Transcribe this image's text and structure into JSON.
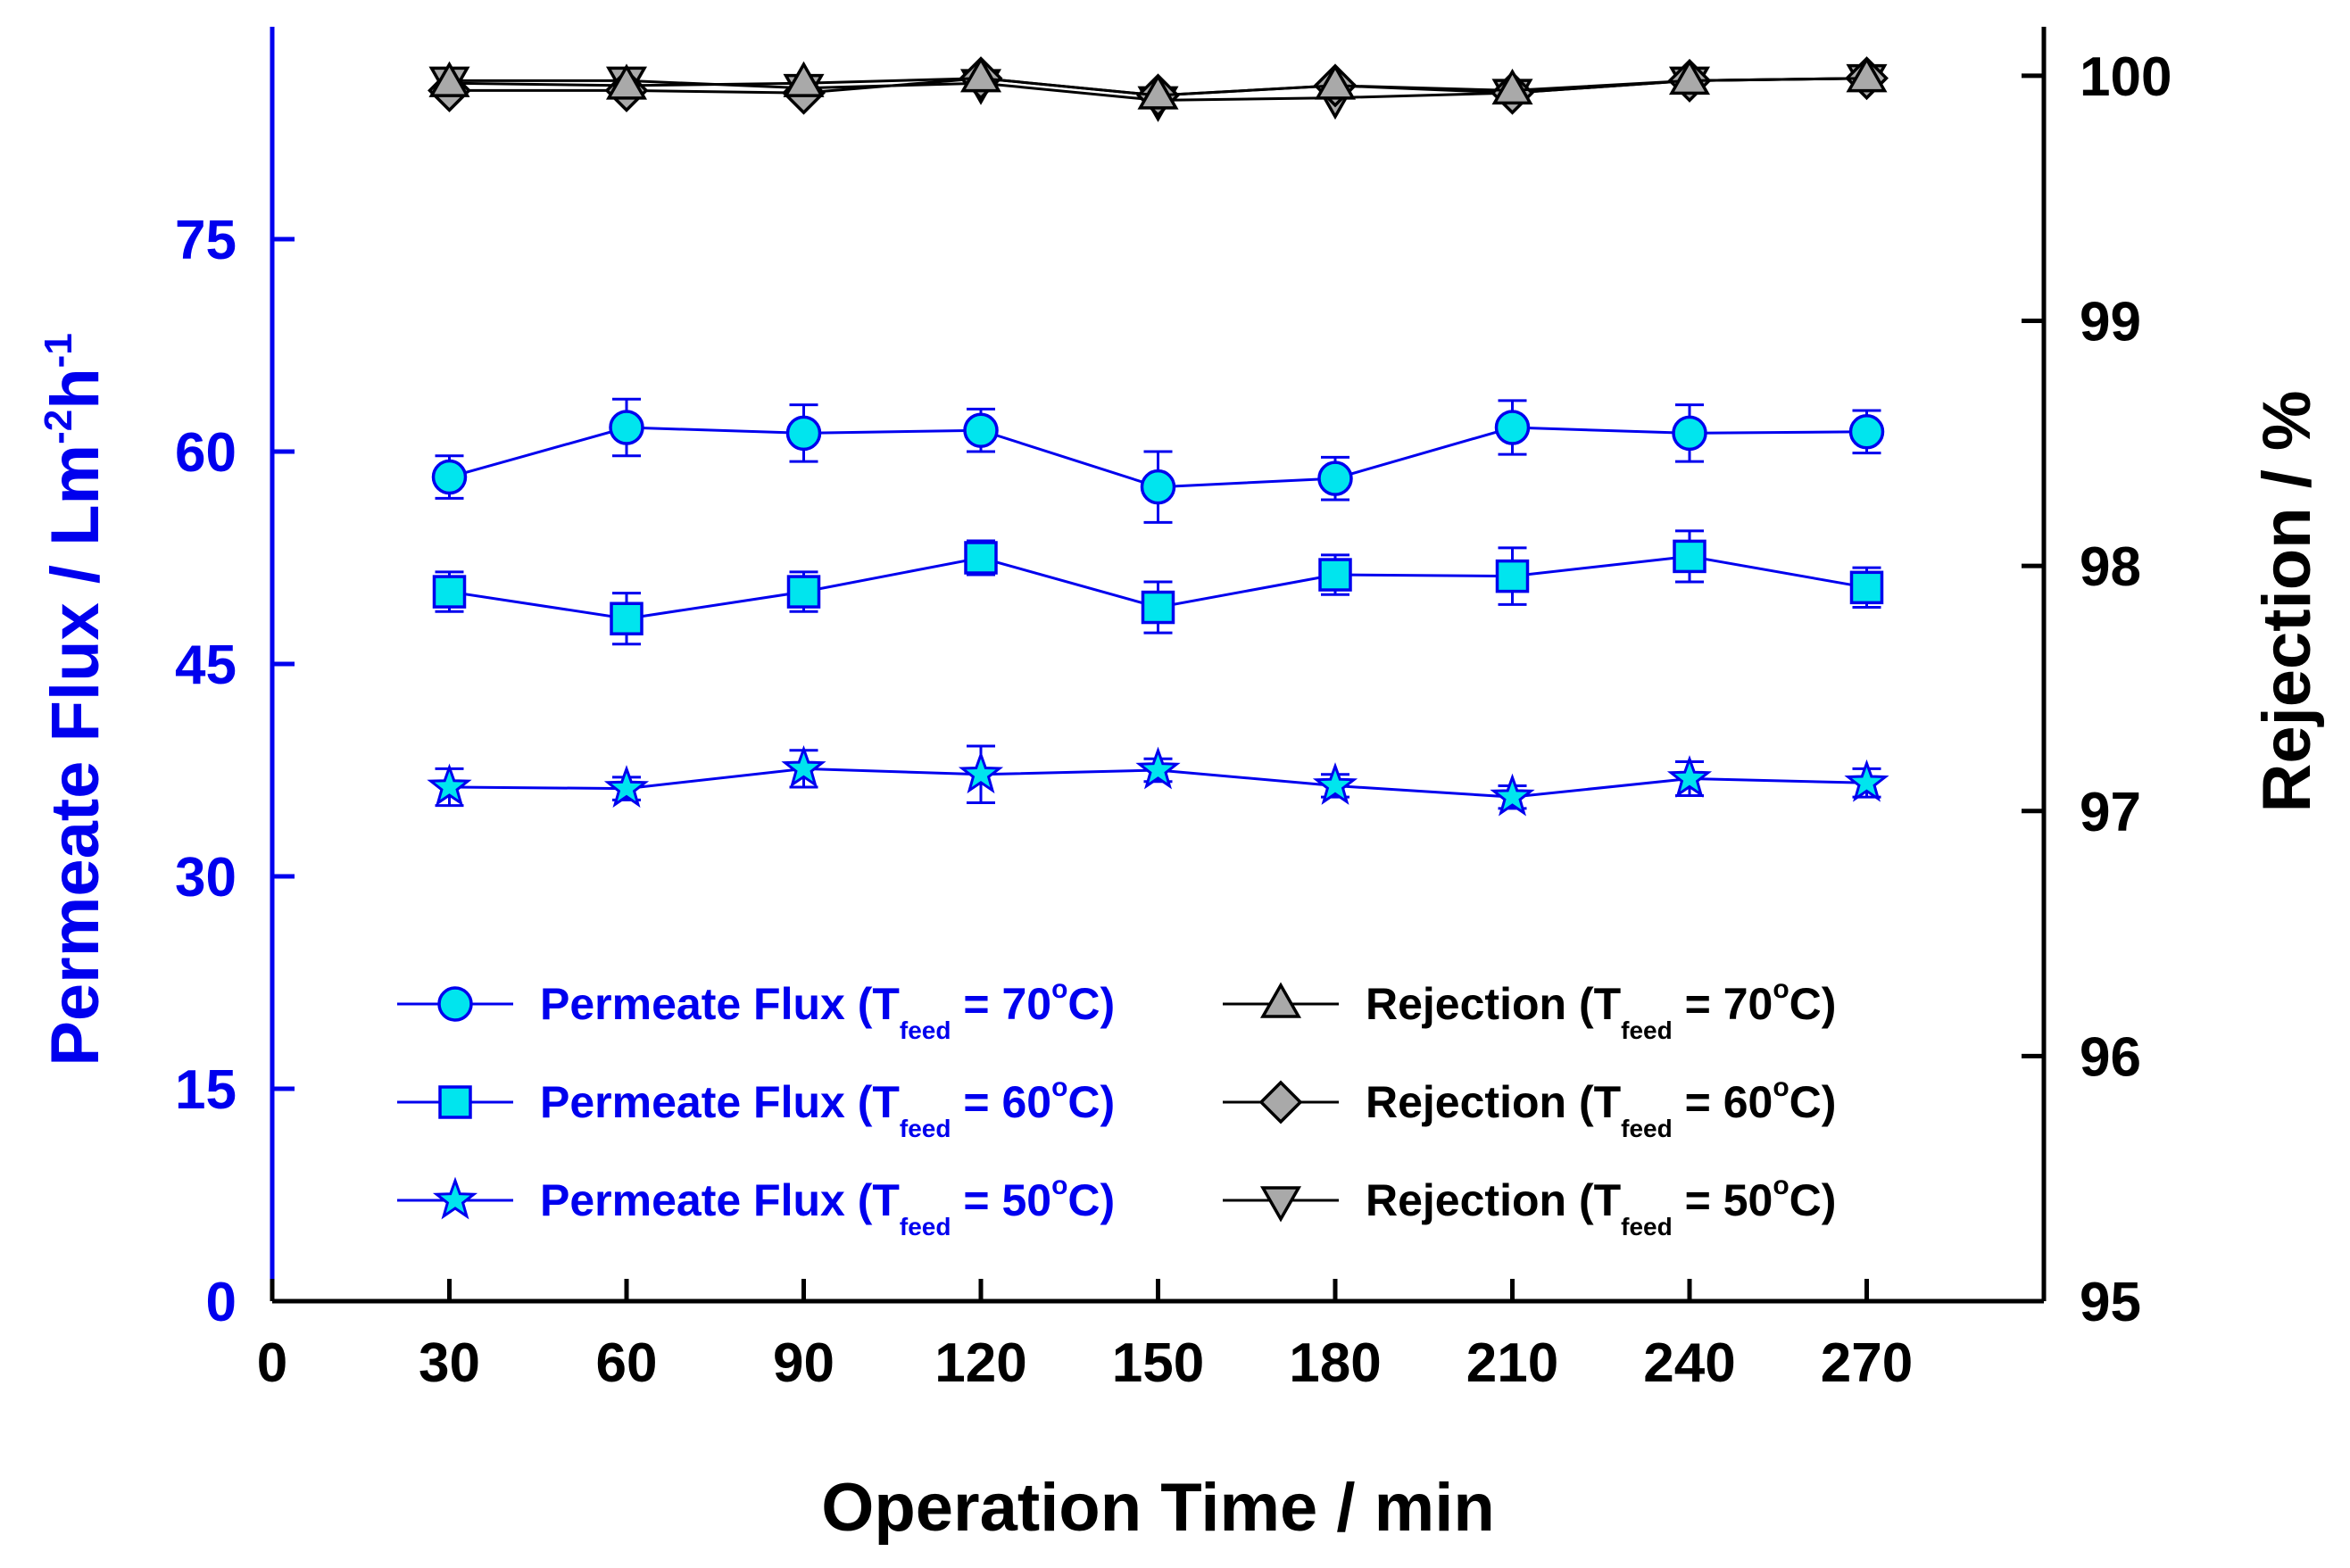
{
  "chart_data": {
    "type": "line",
    "title": "",
    "x": [
      30,
      60,
      90,
      120,
      150,
      180,
      210,
      240,
      270
    ],
    "xlabel": "Operation Time / min",
    "xlim": [
      0,
      300
    ],
    "xticks": [
      0,
      30,
      60,
      90,
      120,
      150,
      180,
      210,
      240,
      270
    ],
    "ylabel_left": {
      "text": "Permeate Flux / Lm",
      "sup1": "-2",
      "h": "h",
      "sup2": "-1"
    },
    "ylim_left": [
      0,
      90
    ],
    "yticks_left": [
      0,
      15,
      30,
      45,
      60,
      75
    ],
    "ylabel_right": "Rejection / %",
    "ylim_right": [
      95,
      100.2
    ],
    "yticks_right": [
      95,
      96,
      97,
      98,
      99,
      100
    ],
    "axis_colors": {
      "left": "#0000ee",
      "right": "#000000",
      "bottom": "#000000"
    },
    "series": [
      {
        "name": "Permeate Flux (T feed = 70°C)",
        "axis": "left",
        "marker": "circle",
        "line_color": "#0000ee",
        "fill": "#00e5ee",
        "values": [
          58.2,
          61.7,
          61.3,
          61.5,
          57.5,
          58.1,
          61.7,
          61.3,
          61.4
        ],
        "errors": [
          1.5,
          2.0,
          2.0,
          1.5,
          2.5,
          1.5,
          1.9,
          2.0,
          1.5
        ]
      },
      {
        "name": "Permeate Flux (T feed = 60°C)",
        "axis": "left",
        "marker": "square",
        "line_color": "#0000ee",
        "fill": "#00e5ee",
        "values": [
          50.1,
          48.2,
          50.1,
          52.5,
          49.0,
          51.3,
          51.2,
          52.6,
          50.4
        ],
        "errors": [
          1.4,
          1.8,
          1.4,
          1.2,
          1.8,
          1.4,
          2.0,
          1.8,
          1.4
        ]
      },
      {
        "name": "Permeate Flux (T feed = 50°C)",
        "axis": "left",
        "marker": "star",
        "line_color": "#0000ee",
        "fill": "#00e5ee",
        "values": [
          36.3,
          36.2,
          37.6,
          37.2,
          37.5,
          36.4,
          35.6,
          36.9,
          36.6
        ],
        "errors": [
          1.3,
          0.8,
          1.3,
          2.0,
          0.8,
          0.8,
          0.8,
          1.2,
          1.0
        ]
      },
      {
        "name": "Rejection (T feed = 70°C)",
        "axis": "right",
        "marker": "triangle-up",
        "line_color": "#000000",
        "fill": "#a9a9a9",
        "values": [
          99.97,
          99.96,
          99.97,
          99.99,
          99.92,
          99.96,
          99.94,
          99.98,
          99.99
        ]
      },
      {
        "name": "Rejection (T feed = 60°C)",
        "axis": "right",
        "marker": "diamond",
        "line_color": "#000000",
        "fill": "#a9a9a9",
        "values": [
          99.94,
          99.94,
          99.93,
          99.99,
          99.92,
          99.96,
          99.93,
          99.98,
          99.99
        ]
      },
      {
        "name": "Rejection (T feed = 50°C)",
        "axis": "right",
        "marker": "triangle-down",
        "line_color": "#000000",
        "fill": "#a9a9a9",
        "values": [
          99.98,
          99.98,
          99.95,
          99.97,
          99.9,
          99.91,
          99.93,
          99.98,
          99.99
        ]
      }
    ],
    "legend": {
      "placement": "lower-center",
      "items": [
        {
          "series": 0,
          "prefix": "Permeate Flux (T",
          "sub": "feed",
          "suffix": " = 70",
          "deg": "o",
          "end": "C)",
          "color": "#0000ee"
        },
        {
          "series": 1,
          "prefix": "Permeate Flux (T",
          "sub": "feed",
          "suffix": " = 60",
          "deg": "o",
          "end": "C)",
          "color": "#0000ee"
        },
        {
          "series": 2,
          "prefix": "Permeate Flux (T",
          "sub": "feed",
          "suffix": " = 50",
          "deg": "o",
          "end": "C)",
          "color": "#0000ee"
        },
        {
          "series": 3,
          "prefix": "Rejection (T",
          "sub": "feed",
          "suffix": " = 70",
          "deg": "o",
          "end": "C)",
          "color": "#000000"
        },
        {
          "series": 4,
          "prefix": "Rejection (T",
          "sub": "feed",
          "suffix": " = 60",
          "deg": "o",
          "end": "C)",
          "color": "#000000"
        },
        {
          "series": 5,
          "prefix": "Rejection (T",
          "sub": "feed",
          "suffix": " = 50",
          "deg": "o",
          "end": "C)",
          "color": "#000000"
        }
      ]
    }
  }
}
